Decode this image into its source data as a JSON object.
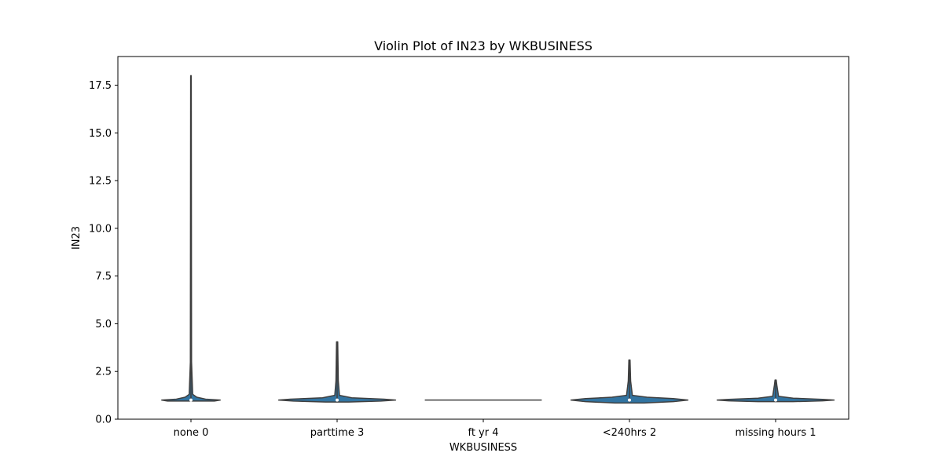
{
  "chart_data": {
    "type": "violin",
    "title": "Violin Plot of IN23 by WKBUSINESS",
    "xlabel": "WKBUSINESS",
    "ylabel": "IN23",
    "categories": [
      "none 0",
      "parttime 3",
      "ft yr 4",
      "<240hrs 2",
      "missing hours 1"
    ],
    "ylim": [
      0,
      19
    ],
    "yticks": [
      0,
      2.5,
      5,
      7.5,
      10,
      12.5,
      15,
      17.5
    ],
    "ytick_labels": [
      "0.0",
      "2.5",
      "5.0",
      "7.5",
      "10.0",
      "12.5",
      "15.0",
      "17.5"
    ],
    "grid": false,
    "violin_color": "#3274a1",
    "line_color": "#3f3f3f",
    "series": [
      {
        "category": "none 0",
        "min": 0.95,
        "max": 18.0,
        "median": 1.0,
        "q1": 1.0,
        "q3": 1.05,
        "profile": [
          [
            0.95,
            0.4
          ],
          [
            1.0,
            0.5
          ],
          [
            1.05,
            0.25
          ],
          [
            1.15,
            0.1
          ],
          [
            1.3,
            0.03
          ],
          [
            3,
            0.01
          ],
          [
            18.0,
            0.005
          ]
        ]
      },
      {
        "category": "parttime 3",
        "min": 0.95,
        "max": 4.05,
        "median": 1.0,
        "q1": 0.97,
        "q3": 1.05,
        "profile": [
          [
            0.9,
            0.2
          ],
          [
            0.95,
            0.75
          ],
          [
            1.0,
            1.0
          ],
          [
            1.05,
            0.8
          ],
          [
            1.12,
            0.25
          ],
          [
            1.25,
            0.04
          ],
          [
            2.0,
            0.02
          ],
          [
            4.05,
            0.01
          ]
        ]
      },
      {
        "category": "ft yr 4",
        "min": 1.0,
        "max": 1.0,
        "median": 1.0,
        "q1": 1.0,
        "q3": 1.0,
        "profile": [
          [
            1.0,
            1.0
          ]
        ]
      },
      {
        "category": "<240hrs 2",
        "min": 0.9,
        "max": 3.1,
        "median": 1.0,
        "q1": 0.95,
        "q3": 1.05,
        "profile": [
          [
            0.85,
            0.25
          ],
          [
            0.92,
            0.75
          ],
          [
            1.0,
            1.0
          ],
          [
            1.08,
            0.75
          ],
          [
            1.15,
            0.3
          ],
          [
            1.25,
            0.05
          ],
          [
            2.0,
            0.02
          ],
          [
            3.1,
            0.01
          ]
        ]
      },
      {
        "category": "missing hours 1",
        "min": 0.95,
        "max": 2.05,
        "median": 1.0,
        "q1": 0.98,
        "q3": 1.04,
        "profile": [
          [
            0.92,
            0.3
          ],
          [
            0.96,
            0.8
          ],
          [
            1.0,
            1.0
          ],
          [
            1.04,
            0.8
          ],
          [
            1.1,
            0.3
          ],
          [
            1.2,
            0.05
          ],
          [
            1.8,
            0.02
          ],
          [
            2.05,
            0.01
          ]
        ]
      }
    ]
  }
}
